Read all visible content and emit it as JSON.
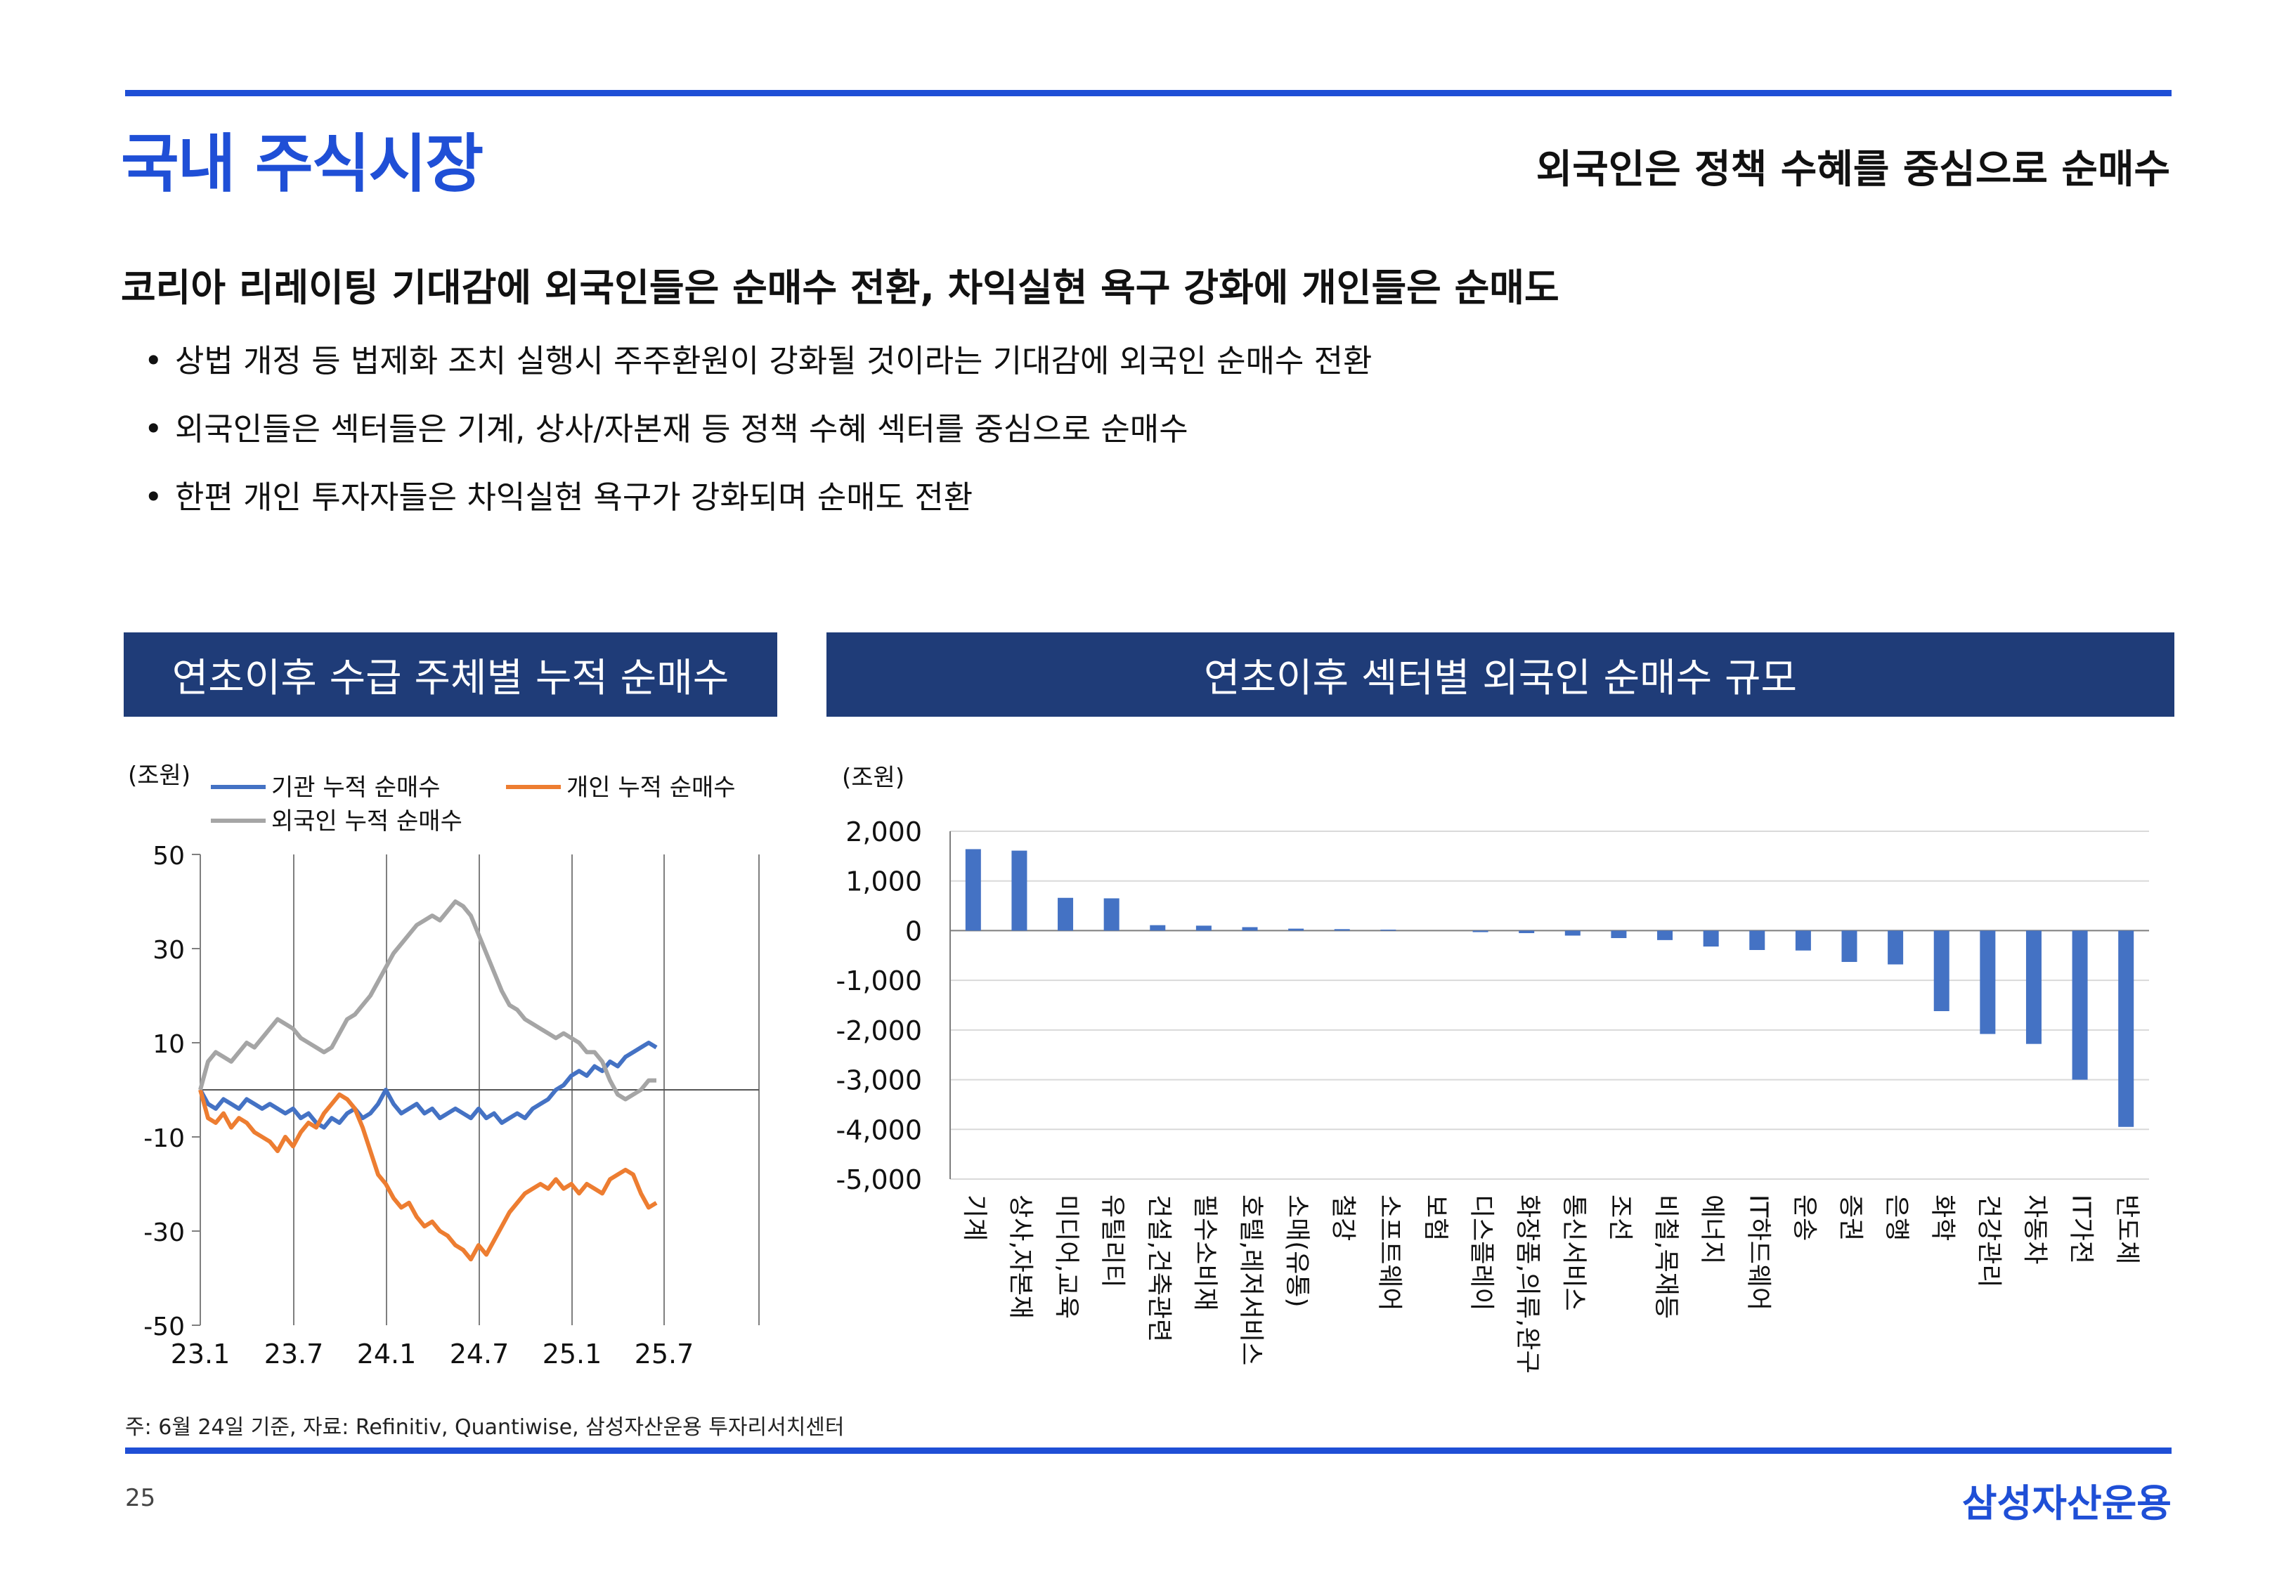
{
  "page": {
    "title": "국내 주식시장",
    "subtitle": "외국인은 정책 수혜를 중심으로 순매수",
    "headline": "코리아 리레이팅 기대감에 외국인들은 순매수 전환, 차익실현 욕구 강화에 개인들은 순매도",
    "bullets": [
      "상법 개정 등 법제화 조치 실행시 주주환원이 강화될 것이라는 기대감에 외국인 순매수 전환",
      "외국인들은 섹터들은 기계, 상사/자본재 등 정책 수혜 섹터를 중심으로 순매수",
      "한편 개인 투자자들은 차익실현 욕구가 강화되며 순매도 전환"
    ],
    "bullet_symbol": "•",
    "footnote": "주: 6월 24일 기준, 자료: Refinitiv, Quantiwise, 삼성자산운용 투자리서치센터",
    "page_number": "25",
    "brand": "삼성자산운용"
  },
  "colors": {
    "accent": "#1f4fd6",
    "header_bg": "#1f3c78",
    "institution": "#4472c4",
    "individual": "#ed7d31",
    "foreign": "#a5a5a5",
    "bar": "#4472c4"
  },
  "chart_data": [
    {
      "type": "line",
      "title": "연초이후 수급 주체별 누적 순매수",
      "unit_label": "(조원)",
      "ylim": [
        -50,
        50
      ],
      "yticks": [
        "50",
        "30",
        "10",
        "-10",
        "-30",
        "-50"
      ],
      "x_ticks": [
        "23.1",
        "23.7",
        "24.1",
        "24.7",
        "25.1",
        "25.7"
      ],
      "series": [
        {
          "name": "기관 누적 순매수",
          "color": "#4472c4",
          "x": [
            0,
            0.5,
            1,
            1.5,
            2,
            2.5,
            3,
            3.5,
            4,
            4.5,
            5,
            5.5,
            6,
            6.5,
            7,
            7.5,
            8,
            8.5,
            9,
            9.5,
            10,
            10.5,
            11,
            11.5,
            12,
            12.5,
            13,
            13.5,
            14,
            14.5,
            15,
            15.5,
            16,
            16.5,
            17,
            17.5,
            18,
            18.5,
            19,
            19.5,
            20,
            20.5,
            21,
            21.5,
            22,
            22.5,
            23,
            23.5,
            24,
            24.5,
            25,
            25.5,
            26,
            26.5,
            27,
            27.5,
            28,
            28.5,
            29,
            29.5
          ],
          "values": [
            0,
            -3,
            -4,
            -2,
            -3,
            -4,
            -2,
            -3,
            -4,
            -3,
            -4,
            -5,
            -4,
            -6,
            -5,
            -7,
            -8,
            -6,
            -7,
            -5,
            -4,
            -6,
            -5,
            -3,
            0,
            -3,
            -5,
            -4,
            -3,
            -5,
            -4,
            -6,
            -5,
            -4,
            -5,
            -6,
            -4,
            -6,
            -5,
            -7,
            -6,
            -5,
            -6,
            -4,
            -3,
            -2,
            0,
            1,
            3,
            4,
            3,
            5,
            4,
            6,
            5,
            7,
            8,
            9,
            10,
            9
          ]
        },
        {
          "name": "개인 누적 순매수",
          "color": "#ed7d31",
          "x": [
            0,
            0.5,
            1,
            1.5,
            2,
            2.5,
            3,
            3.5,
            4,
            4.5,
            5,
            5.5,
            6,
            6.5,
            7,
            7.5,
            8,
            8.5,
            9,
            9.5,
            10,
            10.5,
            11,
            11.5,
            12,
            12.5,
            13,
            13.5,
            14,
            14.5,
            15,
            15.5,
            16,
            16.5,
            17,
            17.5,
            18,
            18.5,
            19,
            19.5,
            20,
            20.5,
            21,
            21.5,
            22,
            22.5,
            23,
            23.5,
            24,
            24.5,
            25,
            25.5,
            26,
            26.5,
            27,
            27.5,
            28,
            28.5,
            29,
            29.5
          ],
          "values": [
            0,
            -6,
            -7,
            -5,
            -8,
            -6,
            -7,
            -9,
            -10,
            -11,
            -13,
            -10,
            -12,
            -9,
            -7,
            -8,
            -5,
            -3,
            -1,
            -2,
            -4,
            -8,
            -13,
            -18,
            -20,
            -23,
            -25,
            -24,
            -27,
            -29,
            -28,
            -30,
            -31,
            -33,
            -34,
            -36,
            -33,
            -35,
            -32,
            -29,
            -26,
            -24,
            -22,
            -21,
            -20,
            -21,
            -19,
            -21,
            -20,
            -22,
            -20,
            -21,
            -22,
            -19,
            -18,
            -17,
            -18,
            -22,
            -25,
            -24
          ]
        },
        {
          "name": "외국인 누적 순매수",
          "color": "#a5a5a5",
          "x": [
            0,
            0.5,
            1,
            1.5,
            2,
            2.5,
            3,
            3.5,
            4,
            4.5,
            5,
            5.5,
            6,
            6.5,
            7,
            7.5,
            8,
            8.5,
            9,
            9.5,
            10,
            10.5,
            11,
            11.5,
            12,
            12.5,
            13,
            13.5,
            14,
            14.5,
            15,
            15.5,
            16,
            16.5,
            17,
            17.5,
            18,
            18.5,
            19,
            19.5,
            20,
            20.5,
            21,
            21.5,
            22,
            22.5,
            23,
            23.5,
            24,
            24.5,
            25,
            25.5,
            26,
            26.5,
            27,
            27.5,
            28,
            28.5,
            29,
            29.5
          ],
          "values": [
            0,
            6,
            8,
            7,
            6,
            8,
            10,
            9,
            11,
            13,
            15,
            14,
            13,
            11,
            10,
            9,
            8,
            9,
            12,
            15,
            16,
            18,
            20,
            23,
            26,
            29,
            31,
            33,
            35,
            36,
            37,
            36,
            38,
            40,
            39,
            37,
            33,
            29,
            25,
            21,
            18,
            17,
            15,
            14,
            13,
            12,
            11,
            12,
            11,
            10,
            8,
            8,
            6,
            2,
            -1,
            -2,
            -1,
            0,
            2,
            2
          ]
        }
      ]
    },
    {
      "type": "bar",
      "title": "연초이후 섹터별 외국인 순매수 규모",
      "unit_label": "(조원)",
      "ylim": [
        -5000,
        2000
      ],
      "yticks": [
        "2,000",
        "1,000",
        "0",
        "-1,000",
        "-2,000",
        "-3,000",
        "-4,000",
        "-5,000"
      ],
      "categories": [
        "기계",
        "상사,자본재",
        "미디어,교육",
        "유틸리티",
        "건설,건축관련",
        "필수소비재",
        "호텔,레저서비스",
        "소매(유통)",
        "철강",
        "소프트웨어",
        "보험",
        "디스플레이",
        "화장품,의류,완구",
        "통신서비스",
        "조선",
        "비철,목재등",
        "에너지",
        "IT하드웨어",
        "운송",
        "증권",
        "은행",
        "화학",
        "건강관리",
        "자동차",
        "IT가전",
        "반도체"
      ],
      "values": [
        1640,
        1610,
        660,
        650,
        110,
        100,
        70,
        40,
        30,
        20,
        0,
        -30,
        -50,
        -100,
        -150,
        -190,
        -320,
        -390,
        -400,
        -630,
        -680,
        -1620,
        -2080,
        -2280,
        -3000,
        -3950
      ]
    }
  ]
}
